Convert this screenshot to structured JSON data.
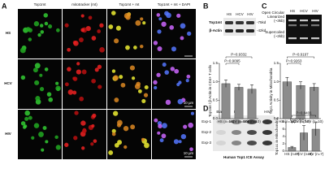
{
  "panel_a": {
    "label": "A",
    "columns": [
      "Top1mt",
      "mitotracker (mt)",
      "Top1mt + mt",
      "Top1mt + mt + DAPI"
    ],
    "rows": [
      "HS",
      "HCV",
      "HIV"
    ],
    "scale_bar": "10 µm"
  },
  "panel_b": {
    "label": "B",
    "lanes": [
      "HS",
      "HCV",
      "HIV"
    ],
    "bands": [
      "Top1mt",
      "β-Actin"
    ],
    "sizes": [
      "-75kd",
      "-42kd"
    ],
    "chart": {
      "type": "bar",
      "y_label": "Top1mt / β-Actin in CD4+ T cells",
      "categories": [
        "HS (n=10)",
        "HCV (n=10)",
        "HIV (n=10)"
      ],
      "values": [
        0.95,
        0.85,
        0.8
      ],
      "errors": [
        0.1,
        0.08,
        0.12
      ],
      "color": "#8c8c8c",
      "ylim": [
        0,
        1.5
      ],
      "yticks": [
        {
          "value": 0,
          "label": "0.0"
        },
        0.5,
        {
          "value": 1,
          "label": "1.0"
        },
        1.5
      ],
      "annotations": [
        "P=0.9332",
        "P=0.9095"
      ]
    }
  },
  "panel_c": {
    "label": "C",
    "lanes": [
      "HS",
      "HCV",
      "HIV"
    ],
    "gel_labels": [
      "Open Circular",
      "Linearized",
      "(~3kb)",
      "Supercoiled",
      "(~2kb)"
    ],
    "chart": {
      "type": "bar",
      "y_label": "Top1 Activity in Mitochondria",
      "categories": [
        "HS (n=10)",
        "HCV (n=10)",
        "HIV (n=10)"
      ],
      "values": [
        1.0,
        0.9,
        0.85
      ],
      "errors": [
        0.12,
        0.1,
        0.1
      ],
      "color": "#8c8c8c",
      "ylim": [
        0,
        1.5
      ],
      "yticks": [
        {
          "value": 0,
          "label": "0.0"
        },
        0.5,
        {
          "value": 1,
          "label": "1.0"
        },
        1.5
      ],
      "annotations": [
        "P=0.9197",
        "P=0.9263"
      ]
    }
  },
  "panel_d": {
    "label": "D",
    "lanes": [
      "Blank",
      "HS",
      "HCV",
      "HIV"
    ],
    "rows": [
      "Exp-1",
      "Exp-2",
      "Exp-3"
    ],
    "caption": "Human Top1 ICE Assay",
    "chart": {
      "type": "bar",
      "y_label": "Top1cc in Mitochondria",
      "categories": [
        "HS (n=7)",
        "HCV (n=8)",
        "HIV (n=7)"
      ],
      "values": [
        1,
        5,
        6
      ],
      "errors": [
        0.3,
        2,
        1.8
      ],
      "color": "#8c8c8c",
      "ylim": [
        0,
        8
      ],
      "yticks": [
        0,
        2,
        4,
        6,
        8
      ],
      "annotations": [
        "P=0.0401",
        "P=0.0041"
      ]
    }
  }
}
